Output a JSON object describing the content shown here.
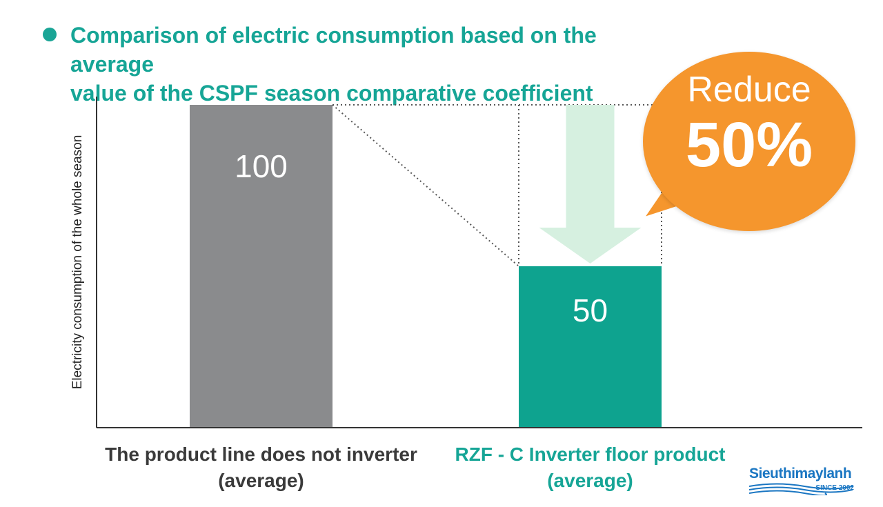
{
  "title": "Comparison of electric consumption based on the average\nvalue of the CSPF season comparative coefficient",
  "chart_data": {
    "type": "bar",
    "categories": [
      "The product line does not inverter\n(average)",
      "RZF - C Inverter floor product\n(average)"
    ],
    "values": [
      100,
      50
    ],
    "data_labels": [
      "100",
      "50"
    ],
    "ylabel": "Electricity consumption of the whole season",
    "xlabel": "",
    "ylim": [
      0,
      100
    ],
    "grid": false,
    "bar_colors": [
      "#8a8b8d",
      "#0ea38f"
    ],
    "annotation": {
      "line1": "Reduce",
      "line2": "50%"
    }
  },
  "colors": {
    "title": "#16a596",
    "bullet": "#1aa596",
    "bubble": "#f5962d",
    "arrow": "#d6f0e0",
    "axis": "#333333",
    "label_left": "#3a3a3a",
    "label_right": "#16a596",
    "logo": "#1a76c2"
  },
  "logo": {
    "name": "Sieuthimaylanh",
    "since": "SINCE 2002"
  },
  "icons": {
    "bullet": "circle-bullet-icon",
    "arrow": "down-arrow-icon",
    "logo": "wave-logo-icon"
  }
}
